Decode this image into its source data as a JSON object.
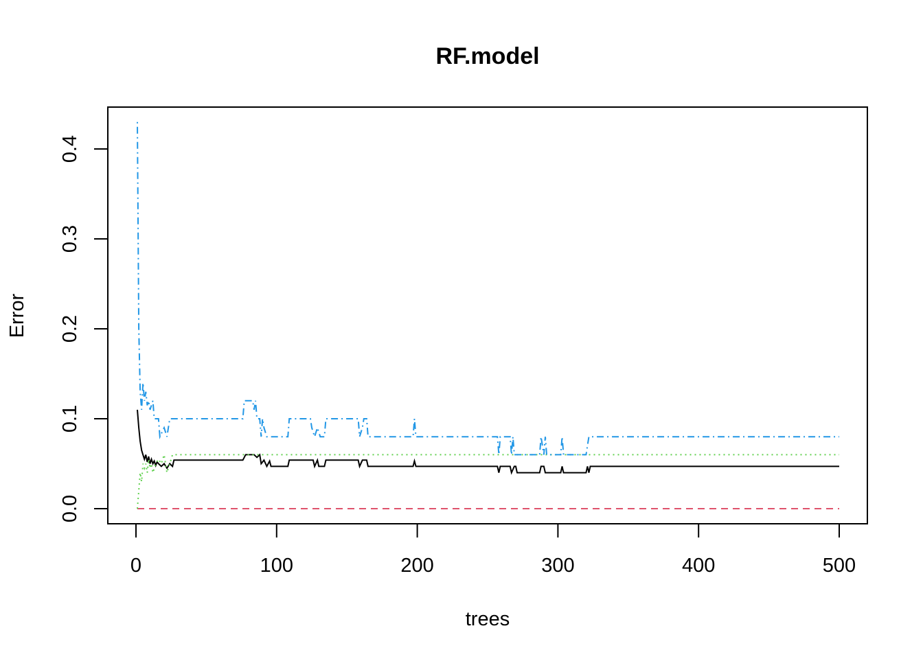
{
  "chart_data": {
    "type": "line",
    "title": "RF.model",
    "xlabel": "trees",
    "ylabel": "Error",
    "xlim": [
      0,
      500
    ],
    "ylim": [
      0,
      0.43
    ],
    "x_ticks": [
      0,
      100,
      200,
      300,
      400,
      500
    ],
    "x_tick_labels": [
      "0",
      "100",
      "200",
      "300",
      "400",
      "500"
    ],
    "y_ticks": [
      0.0,
      0.1,
      0.2,
      0.3,
      0.4
    ],
    "y_tick_labels": [
      "0.0",
      "0.1",
      "0.2",
      "0.3",
      "0.4"
    ],
    "grid": false,
    "legend": "none",
    "series": [
      {
        "color": "#000000",
        "dash": "solid",
        "points": [
          [
            1,
            0.11
          ],
          [
            2,
            0.09
          ],
          [
            3,
            0.075
          ],
          [
            4,
            0.065
          ],
          [
            5,
            0.06
          ],
          [
            6,
            0.055
          ],
          [
            7,
            0.06
          ],
          [
            8,
            0.052
          ],
          [
            9,
            0.058
          ],
          [
            10,
            0.05
          ],
          [
            11,
            0.055
          ],
          [
            12,
            0.05
          ],
          [
            13,
            0.053
          ],
          [
            14,
            0.048
          ],
          [
            15,
            0.052
          ],
          [
            16,
            0.05
          ],
          [
            18,
            0.047
          ],
          [
            20,
            0.05
          ],
          [
            22,
            0.045
          ],
          [
            24,
            0.05
          ],
          [
            26,
            0.047
          ],
          [
            27,
            0.054
          ],
          [
            76,
            0.054
          ],
          [
            78,
            0.06
          ],
          [
            84,
            0.06
          ],
          [
            86,
            0.057
          ],
          [
            88,
            0.06
          ],
          [
            89,
            0.05
          ],
          [
            91,
            0.054
          ],
          [
            93,
            0.047
          ],
          [
            95,
            0.053
          ],
          [
            96,
            0.047
          ],
          [
            108,
            0.047
          ],
          [
            109,
            0.054
          ],
          [
            126,
            0.054
          ],
          [
            127,
            0.047
          ],
          [
            129,
            0.054
          ],
          [
            130,
            0.047
          ],
          [
            134,
            0.047
          ],
          [
            135,
            0.054
          ],
          [
            158,
            0.054
          ],
          [
            159,
            0.047
          ],
          [
            161,
            0.054
          ],
          [
            164,
            0.054
          ],
          [
            165,
            0.047
          ],
          [
            197,
            0.047
          ],
          [
            198,
            0.053
          ],
          [
            199,
            0.047
          ],
          [
            257,
            0.047
          ],
          [
            258,
            0.04
          ],
          [
            259,
            0.047
          ],
          [
            266,
            0.047
          ],
          [
            267,
            0.04
          ],
          [
            269,
            0.047
          ],
          [
            270,
            0.047
          ],
          [
            271,
            0.04
          ],
          [
            287,
            0.04
          ],
          [
            288,
            0.047
          ],
          [
            290,
            0.047
          ],
          [
            291,
            0.04
          ],
          [
            302,
            0.04
          ],
          [
            303,
            0.047
          ],
          [
            304,
            0.04
          ],
          [
            320,
            0.04
          ],
          [
            321,
            0.047
          ],
          [
            322,
            0.04
          ],
          [
            323,
            0.047
          ],
          [
            500,
            0.047
          ]
        ]
      },
      {
        "color": "#DF536B",
        "dash": "dashed",
        "points": [
          [
            1,
            0.0
          ],
          [
            500,
            0.0
          ]
        ]
      },
      {
        "color": "#61D04F",
        "dash": "dotted",
        "points": [
          [
            1,
            0.0
          ],
          [
            2,
            0.02
          ],
          [
            3,
            0.04
          ],
          [
            4,
            0.03
          ],
          [
            5,
            0.05
          ],
          [
            6,
            0.045
          ],
          [
            7,
            0.05
          ],
          [
            8,
            0.04
          ],
          [
            9,
            0.055
          ],
          [
            10,
            0.045
          ],
          [
            11,
            0.05
          ],
          [
            12,
            0.04
          ],
          [
            14,
            0.05
          ],
          [
            16,
            0.055
          ],
          [
            18,
            0.05
          ],
          [
            20,
            0.06
          ],
          [
            22,
            0.04
          ],
          [
            24,
            0.05
          ],
          [
            26,
            0.06
          ],
          [
            500,
            0.06
          ]
        ]
      },
      {
        "color": "#2297E6",
        "dash": "dotdash",
        "points": [
          [
            1,
            0.43
          ],
          [
            2,
            0.2
          ],
          [
            3,
            0.13
          ],
          [
            4,
            0.11
          ],
          [
            5,
            0.14
          ],
          [
            6,
            0.12
          ],
          [
            7,
            0.13
          ],
          [
            8,
            0.115
          ],
          [
            9,
            0.12
          ],
          [
            10,
            0.11
          ],
          [
            12,
            0.12
          ],
          [
            13,
            0.1
          ],
          [
            16,
            0.1
          ],
          [
            17,
            0.08
          ],
          [
            20,
            0.09
          ],
          [
            22,
            0.08
          ],
          [
            24,
            0.1
          ],
          [
            76,
            0.1
          ],
          [
            77,
            0.12
          ],
          [
            83,
            0.12
          ],
          [
            84,
            0.11
          ],
          [
            85,
            0.12
          ],
          [
            86,
            0.1
          ],
          [
            88,
            0.1
          ],
          [
            89,
            0.08
          ],
          [
            90,
            0.1
          ],
          [
            91,
            0.09
          ],
          [
            93,
            0.08
          ],
          [
            108,
            0.08
          ],
          [
            109,
            0.1
          ],
          [
            124,
            0.1
          ],
          [
            125,
            0.09
          ],
          [
            127,
            0.08
          ],
          [
            129,
            0.09
          ],
          [
            131,
            0.08
          ],
          [
            134,
            0.08
          ],
          [
            135,
            0.1
          ],
          [
            158,
            0.1
          ],
          [
            159,
            0.08
          ],
          [
            161,
            0.09
          ],
          [
            162,
            0.1
          ],
          [
            164,
            0.1
          ],
          [
            165,
            0.08
          ],
          [
            197,
            0.08
          ],
          [
            198,
            0.1
          ],
          [
            199,
            0.08
          ],
          [
            257,
            0.08
          ],
          [
            258,
            0.06
          ],
          [
            259,
            0.08
          ],
          [
            266,
            0.08
          ],
          [
            267,
            0.06
          ],
          [
            268,
            0.08
          ],
          [
            269,
            0.06
          ],
          [
            287,
            0.06
          ],
          [
            288,
            0.08
          ],
          [
            290,
            0.06
          ],
          [
            291,
            0.08
          ],
          [
            292,
            0.06
          ],
          [
            302,
            0.06
          ],
          [
            303,
            0.08
          ],
          [
            304,
            0.06
          ],
          [
            320,
            0.06
          ],
          [
            321,
            0.07
          ],
          [
            322,
            0.08
          ],
          [
            500,
            0.08
          ]
        ]
      }
    ]
  }
}
